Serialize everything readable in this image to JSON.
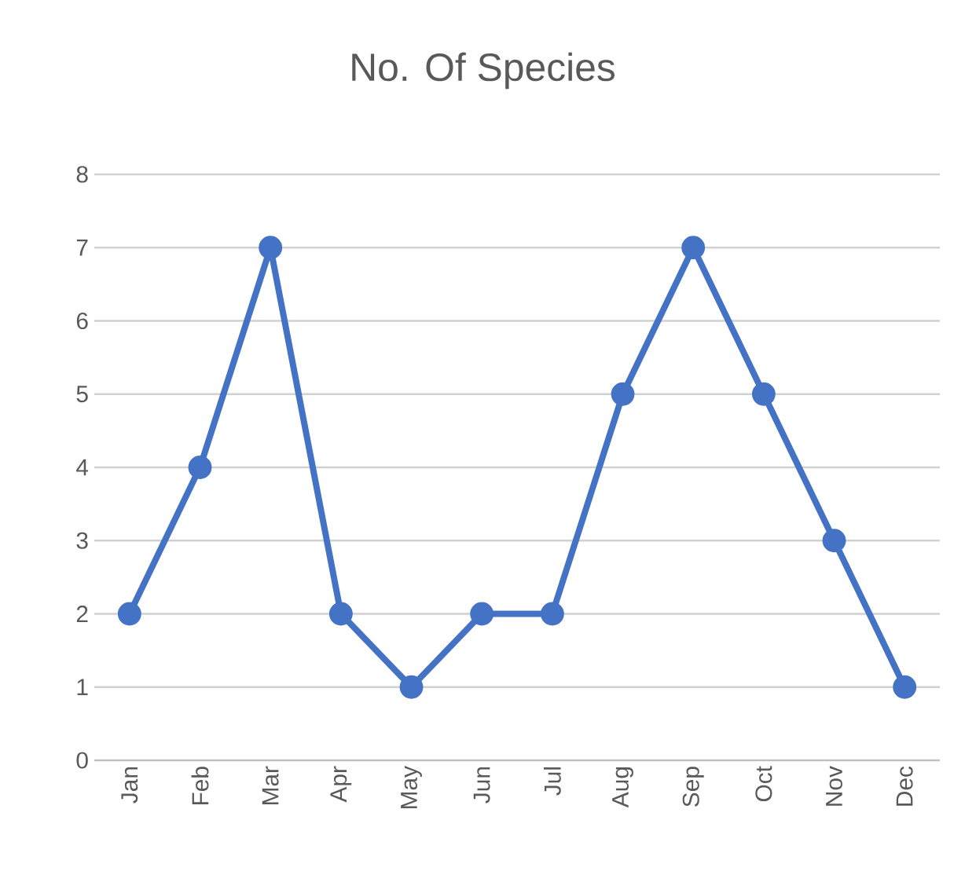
{
  "chart_data": {
    "type": "line",
    "title": "No. Of Species",
    "categories": [
      "Jan",
      "Feb",
      "Mar",
      "Apr",
      "May",
      "Jun",
      "Jul",
      "Aug",
      "Sep",
      "Oct",
      "Nov",
      "Dec"
    ],
    "series": [
      {
        "color": "#4472c4",
        "values": [
          2,
          4,
          7,
          2,
          1,
          2,
          2,
          5,
          7,
          5,
          3,
          1
        ]
      }
    ],
    "ylim": [
      0,
      8
    ],
    "yticks": [
      0,
      1,
      2,
      3,
      4,
      5,
      6,
      7,
      8
    ],
    "grid": "y",
    "marker": "circle",
    "line_style": "solid"
  }
}
